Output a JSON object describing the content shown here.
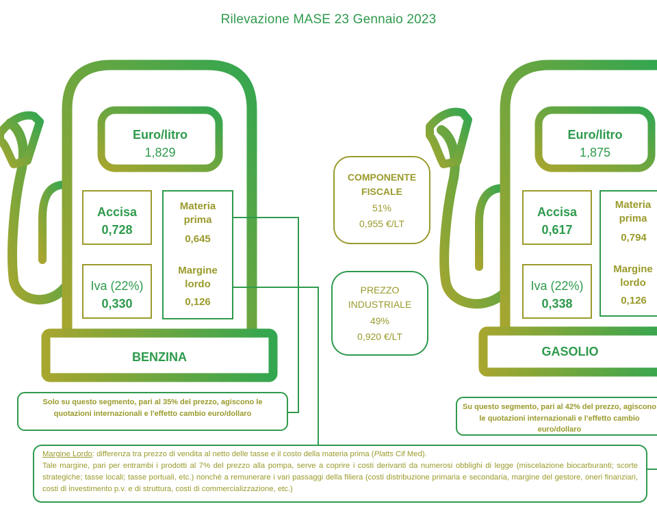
{
  "title": "Rilevazione MASE 23 Gennaio 2023",
  "benzina": {
    "name": "BENZINA",
    "price_label": "Euro/litro",
    "price_value": "1,829",
    "accisa_label": "Accisa",
    "accisa_value": "0,728",
    "iva_label": "Iva (22%)",
    "iva_value": "0,330",
    "materia_label": "Materia prima",
    "materia_value": "0,645",
    "margine_label": "Margine lordo",
    "margine_value": "0,126"
  },
  "gasolio": {
    "name": "GASOLIO",
    "price_label": "Euro/litro",
    "price_value": "1,875",
    "accisa_label": "Accisa",
    "accisa_value": "0,617",
    "iva_label": "Iva (22%)",
    "iva_value": "0,338",
    "materia_label": "Materia prima",
    "materia_value": "0,794",
    "margine_label": "Margine lordo",
    "margine_value": "0,126"
  },
  "fiscale": {
    "label": "COMPONENTE FISCALE",
    "percent": "51%",
    "value": "0,955 €/LT"
  },
  "industriale": {
    "label": "PREZZO INDUSTRIALE",
    "percent": "49%",
    "value": "0,920 €/LT"
  },
  "note_benzina": "Solo su questo segmento, pari al 35% del prezzo, agiscono le quotazioni internazionali e l'effetto cambio euro/dollaro",
  "note_gasolio": "Su questo segmento, pari al 42% del prezzo, agiscono le quotazioni internazionali e l'effetto cambio euro/dollaro",
  "note_margine": {
    "term": "Margine Lordo",
    "line1_a": ": differenza tra prezzo di vendita al netto delle tasse e il costo della materia prima (",
    "line1_em": "Platts",
    "line1_b": " Cif Med).",
    "body": "Tale margine, pari per entrambi i prodotti al 7% del prezzo alla pompa, serve a coprire i costi derivanti da numerosi obblighi di legge (miscelazione biocarburanti; scorte strategiche; tasse locali; tasse portuali, etc.) nonché a remunerare i vari passaggi della filiera (costi distribuzione primaria e secondaria, margine del gestore, oneri finanziari, costi di investimento p.v. e di struttura, costi di commercializzazione, etc.)"
  },
  "colors": {
    "green": "#2e9a4c",
    "olive": "#9a9a2c"
  }
}
